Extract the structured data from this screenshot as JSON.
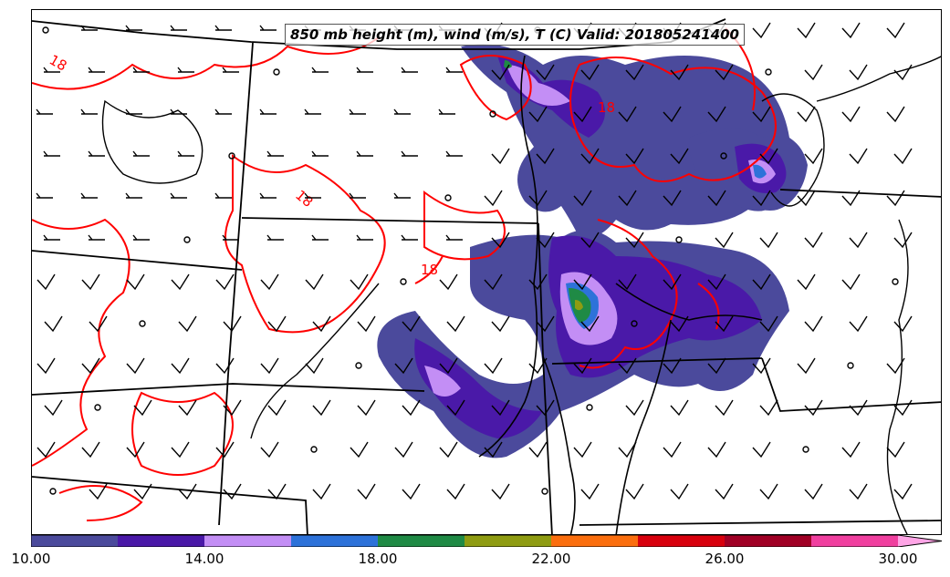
{
  "title": "850 mb height (m), wind (m/s), T (C) Valid: 201805241400",
  "contour_label": "18",
  "colorbar": {
    "ticks": [
      "10.00",
      "14.00",
      "18.00",
      "22.00",
      "26.00",
      "30.00"
    ],
    "colors": [
      "#4b4a9c",
      "#4a19a8",
      "#c38ef5",
      "#2d72d9",
      "#1f8a45",
      "#8f9c12",
      "#fb6e0e",
      "#d8000d",
      "#a00025",
      "#f03f9f",
      "#ffa5e6"
    ]
  },
  "colors": {
    "temperature_contour": "#ff0000",
    "boundaries": "#000000"
  },
  "icons": [
    "wind-barb-icon",
    "calm-wind-circle-icon"
  ]
}
